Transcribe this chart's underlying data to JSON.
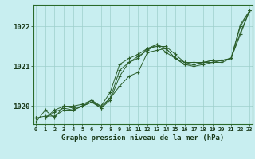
{
  "title": "Graphe pression niveau de la mer (hPa)",
  "bg_color": "#c8eef0",
  "grid_color": "#9dcfcc",
  "line_color": "#2a5e2a",
  "x_labels": [
    "0",
    "1",
    "2",
    "3",
    "4",
    "5",
    "6",
    "7",
    "8",
    "9",
    "10",
    "11",
    "12",
    "13",
    "14",
    "15",
    "16",
    "17",
    "18",
    "19",
    "20",
    "21",
    "22",
    "23"
  ],
  "ylim": [
    1019.55,
    1022.55
  ],
  "yticks": [
    1020,
    1021,
    1022
  ],
  "series": [
    [
      1019.7,
      1019.7,
      1019.85,
      1019.95,
      1019.9,
      1020.0,
      1020.1,
      1019.95,
      1020.2,
      1020.5,
      1020.75,
      1020.85,
      1021.35,
      1021.4,
      1021.45,
      1021.2,
      1021.05,
      1021.05,
      1021.1,
      1021.15,
      1021.15,
      1021.2,
      1022.05,
      1022.4
    ],
    [
      1019.7,
      1019.7,
      1019.9,
      1020.0,
      1020.0,
      1020.05,
      1020.15,
      1019.95,
      1020.15,
      1020.75,
      1021.1,
      1021.2,
      1021.45,
      1021.5,
      1021.5,
      1021.3,
      1021.1,
      1021.05,
      1021.1,
      1021.1,
      1021.15,
      1021.2,
      1022.0,
      1022.4
    ],
    [
      1019.7,
      1019.75,
      1019.75,
      1019.9,
      1019.9,
      1020.0,
      1020.15,
      1020.0,
      1020.2,
      1020.9,
      1021.1,
      1021.25,
      1021.4,
      1021.55,
      1021.45,
      1021.2,
      1021.05,
      1021.0,
      1021.05,
      1021.1,
      1021.1,
      1021.2,
      1021.8,
      1022.4
    ],
    [
      1019.6,
      1019.9,
      1019.7,
      1020.0,
      1019.95,
      1020.0,
      1020.1,
      1020.0,
      1020.35,
      1021.05,
      1021.2,
      1021.3,
      1021.45,
      1021.55,
      1021.35,
      1021.2,
      1021.1,
      1021.1,
      1021.1,
      1021.15,
      1021.15,
      1021.2,
      1021.85,
      1022.4
    ]
  ]
}
